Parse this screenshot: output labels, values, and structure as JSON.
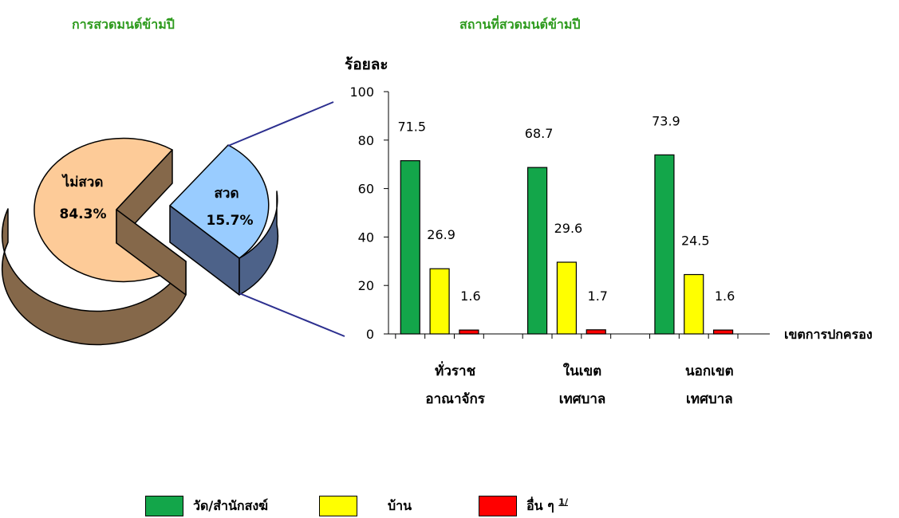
{
  "pie_title": "การสวดมนต์ข้ามปี",
  "bar_title": "สถานที่สวดมนต์ข้ามปี",
  "colors": {
    "pie_large_top": "#fdcb98",
    "pie_large_side": "#85684a",
    "pie_small_top": "#99ccff",
    "pie_small_side": "#4d6289",
    "connector": "#2c2f8f",
    "green": "#13a64a",
    "yellow": "#ffff00",
    "red": "#ff0000"
  },
  "chart_data": [
    {
      "type": "pie",
      "title": "การสวดมนต์ข้ามปี",
      "slices": [
        {
          "label": "ไม่สวด",
          "value": 84.3,
          "value_label": "84.3%"
        },
        {
          "label": "สวด",
          "value": 15.7,
          "value_label": "15.7%"
        }
      ]
    },
    {
      "type": "bar",
      "title": "สถานที่สวดมนต์ข้ามปี",
      "ylabel": "ร้อยละ",
      "xlabel": "เขตการปกครอง",
      "ylim": [
        0,
        100
      ],
      "yticks": [
        0,
        20,
        40,
        60,
        80,
        100
      ],
      "categories": [
        {
          "line1": "ทั่วราช",
          "line2": "อาณาจักร"
        },
        {
          "line1": "ในเขต",
          "line2": "เทศบาล"
        },
        {
          "line1": "นอกเขต",
          "line2": "เทศบาล"
        }
      ],
      "series": [
        {
          "name": "วัด/สำนักสงฆ์",
          "color": "#13a64a",
          "values": [
            71.5,
            68.7,
            73.9
          ]
        },
        {
          "name": "บ้าน",
          "color": "#ffff00",
          "values": [
            26.9,
            29.6,
            24.5
          ]
        },
        {
          "name": "อื่น ๆ",
          "footnote": "1/",
          "color": "#ff0000",
          "values": [
            1.6,
            1.7,
            1.6
          ]
        }
      ]
    }
  ]
}
